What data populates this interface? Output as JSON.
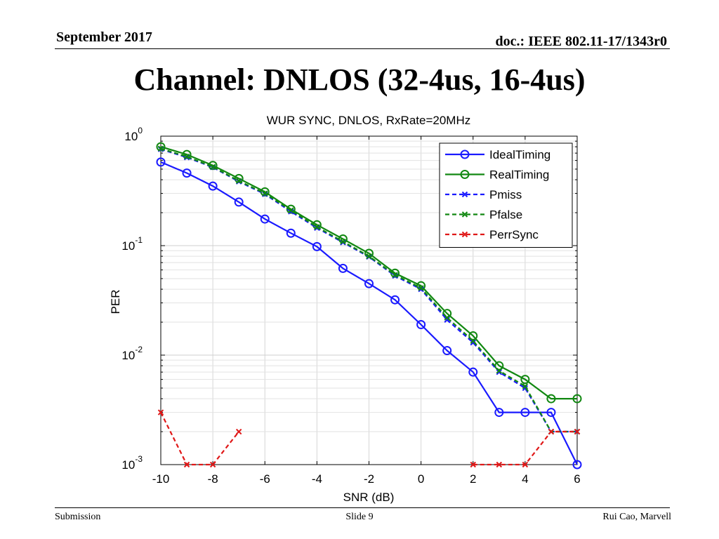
{
  "header": {
    "date": "September 2017",
    "doc": "doc.: IEEE 802.11-17/1343r0"
  },
  "slide": {
    "title": "Channel: DNLOS (32-4us, 16-4us)"
  },
  "footer": {
    "left": "Submission",
    "center": "Slide 9",
    "right": "Rui Cao, Marvell"
  },
  "chart_data": {
    "type": "line",
    "title": "WUR SYNC, DNLOS, RxRate=20MHz",
    "xlabel": "SNR (dB)",
    "ylabel": "PER",
    "xlim": [
      -10,
      6
    ],
    "ylim": [
      0.001,
      1
    ],
    "yscale": "log",
    "xticks": [
      -10,
      -8,
      -6,
      -4,
      -2,
      0,
      2,
      4,
      6
    ],
    "yticks": [
      {
        "value": 1,
        "base": "10",
        "exp": "0"
      },
      {
        "value": 0.1,
        "base": "10",
        "exp": "-1"
      },
      {
        "value": 0.01,
        "base": "10",
        "exp": "-2"
      },
      {
        "value": 0.001,
        "base": "10",
        "exp": "-3"
      }
    ],
    "grid": true,
    "legend_position": "top-right",
    "series": [
      {
        "name": "IdealTiming",
        "color": "#1a1aff",
        "style": "solid",
        "marker": "circle",
        "x": [
          -10,
          -9,
          -8,
          -7,
          -6,
          -5,
          -4,
          -3,
          -2,
          -1,
          0,
          1,
          2,
          3,
          4,
          5,
          6
        ],
        "y": [
          0.58,
          0.46,
          0.35,
          0.25,
          0.175,
          0.13,
          0.098,
          0.062,
          0.045,
          0.032,
          0.019,
          0.011,
          0.007,
          0.003,
          0.003,
          0.003,
          0.001
        ]
      },
      {
        "name": "RealTiming",
        "color": "#118811",
        "style": "solid",
        "marker": "circle",
        "x": [
          -10,
          -9,
          -8,
          -7,
          -6,
          -5,
          -4,
          -3,
          -2,
          -1,
          0,
          1,
          2,
          3,
          4,
          5,
          6
        ],
        "y": [
          0.8,
          0.68,
          0.54,
          0.41,
          0.31,
          0.215,
          0.155,
          0.115,
          0.085,
          0.056,
          0.043,
          0.024,
          0.015,
          0.008,
          0.006,
          0.004,
          0.004
        ]
      },
      {
        "name": "Pmiss",
        "color": "#1a1aff",
        "style": "dashed",
        "marker": "x",
        "x": [
          -10,
          -9,
          -8,
          -7,
          -6,
          -5,
          -4,
          -3,
          -2,
          -1,
          0,
          1,
          2,
          3,
          4,
          5,
          6
        ],
        "y": [
          0.76,
          0.64,
          0.52,
          0.385,
          0.295,
          0.205,
          0.145,
          0.107,
          0.079,
          0.053,
          0.04,
          0.021,
          0.013,
          0.007,
          0.005,
          0.002,
          0.002
        ]
      },
      {
        "name": "Pfalse",
        "color": "#118811",
        "style": "dashed",
        "marker": "x",
        "x": [
          -10,
          -9,
          -8,
          -7,
          -6,
          -5,
          -4,
          -3,
          -2,
          -1,
          0,
          1,
          2,
          3,
          4,
          5,
          6
        ],
        "y": [
          0.77,
          0.65,
          0.525,
          0.39,
          0.3,
          0.21,
          0.148,
          0.109,
          0.08,
          0.054,
          0.041,
          0.022,
          0.0135,
          0.0072,
          0.0052,
          0.002,
          0.002
        ]
      },
      {
        "name": "PerrSync",
        "color": "#e01818",
        "style": "dashed",
        "marker": "x",
        "segments": [
          {
            "x": [
              -10,
              -9,
              -8,
              -7
            ],
            "y": [
              0.003,
              0.001,
              0.001,
              0.002
            ]
          },
          {
            "x": [
              2,
              3,
              4,
              5,
              6
            ],
            "y": [
              0.001,
              0.001,
              0.001,
              0.002,
              0.002
            ]
          }
        ]
      }
    ]
  }
}
